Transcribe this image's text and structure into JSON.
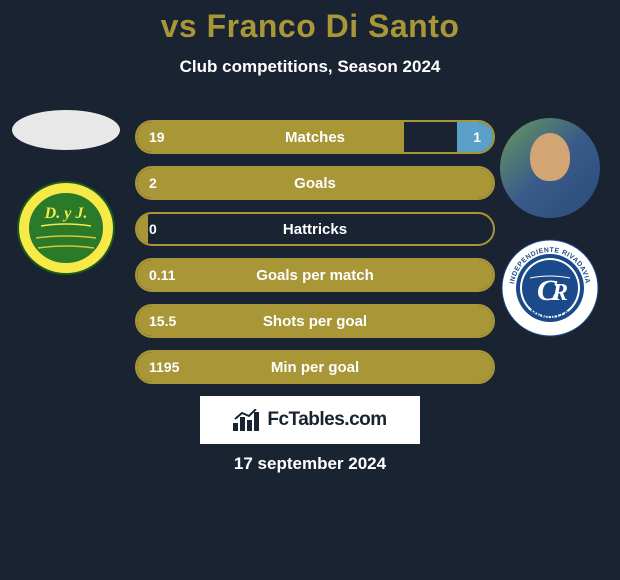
{
  "header": {
    "title": "vs Franco Di Santo",
    "subtitle": "Club competitions, Season 2024"
  },
  "left_team": {
    "badge_text": "D. y J.",
    "badge_colors": {
      "outer": "#f7e948",
      "inner": "#2a7a2a",
      "stroke": "#1a5a1a"
    }
  },
  "right_team": {
    "badge_text_top": "INDEPENDIENTE RIVADAVIA",
    "badge_text_bottom": "MENDOZA",
    "badge_colors": {
      "ring": "#ffffff",
      "inner": "#1a4a8a",
      "text": "#1a4a8a"
    }
  },
  "stats": [
    {
      "label": "Matches",
      "left_val": "19",
      "right_val": "1",
      "left_pct": 75,
      "right_pct": 10,
      "show_right": true
    },
    {
      "label": "Goals",
      "left_val": "2",
      "right_val": "",
      "left_pct": 100,
      "right_pct": 0,
      "show_right": false
    },
    {
      "label": "Hattricks",
      "left_val": "0",
      "right_val": "",
      "left_pct": 3,
      "right_pct": 0,
      "show_right": false
    },
    {
      "label": "Goals per match",
      "left_val": "0.11",
      "right_val": "",
      "left_pct": 100,
      "right_pct": 0,
      "show_right": false
    },
    {
      "label": "Shots per goal",
      "left_val": "15.5",
      "right_val": "",
      "left_pct": 100,
      "right_pct": 0,
      "show_right": false
    },
    {
      "label": "Min per goal",
      "left_val": "1195",
      "right_val": "",
      "left_pct": 100,
      "right_pct": 0,
      "show_right": false
    }
  ],
  "footer": {
    "site_name": "FcTables.com",
    "date": "17 september 2024"
  },
  "colors": {
    "accent": "#a89637",
    "right_bar": "#5aa0c8",
    "bg": "#1a2332",
    "text": "#ffffff"
  }
}
